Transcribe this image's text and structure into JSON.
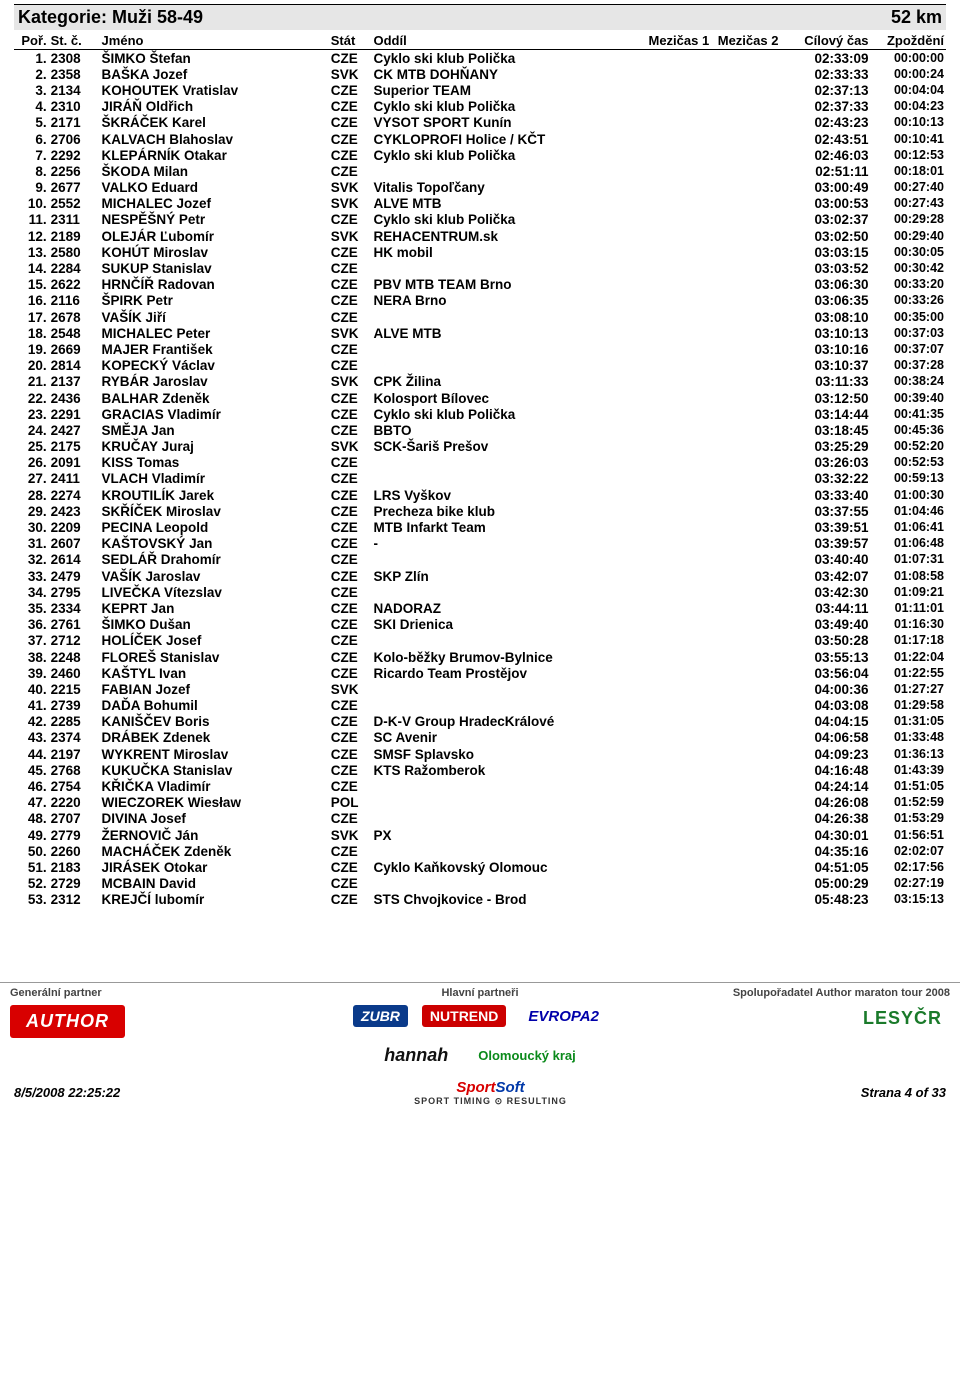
{
  "category": {
    "label": "Kategorie: Muži 58-49",
    "distance": "52 km"
  },
  "columns": {
    "rank": "Poř.",
    "bib": "St. č.",
    "name": "Jméno",
    "nat": "Stát",
    "club": "Oddíl",
    "split1": "Mezičas 1",
    "split2": "Mezičas 2",
    "finish": "Cílový čas",
    "gap": "Zpoždění"
  },
  "rows": [
    {
      "rank": "1.",
      "bib": "2308",
      "name": "ŠIMKO Štefan",
      "nat": "CZE",
      "club": "Cyklo ski klub Polička",
      "finish": "02:33:09",
      "gap": "00:00:00"
    },
    {
      "rank": "2.",
      "bib": "2358",
      "name": "BAŠKA Jozef",
      "nat": "SVK",
      "club": "CK MTB DOHŇANY",
      "finish": "02:33:33",
      "gap": "00:00:24"
    },
    {
      "rank": "3.",
      "bib": "2134",
      "name": "KOHOUTEK Vratislav",
      "nat": "CZE",
      "club": "Superior TEAM",
      "finish": "02:37:13",
      "gap": "00:04:04"
    },
    {
      "rank": "4.",
      "bib": "2310",
      "name": "JIRÁŇ Oldřich",
      "nat": "CZE",
      "club": "Cyklo ski klub Polička",
      "finish": "02:37:33",
      "gap": "00:04:23"
    },
    {
      "rank": "5.",
      "bib": "2171",
      "name": "ŠKRÁČEK Karel",
      "nat": "CZE",
      "club": "VYSOT SPORT Kunín",
      "finish": "02:43:23",
      "gap": "00:10:13"
    },
    {
      "rank": "6.",
      "bib": "2706",
      "name": "KALVACH Blahoslav",
      "nat": "CZE",
      "club": "CYKLOPROFI Holice / KČT",
      "finish": "02:43:51",
      "gap": "00:10:41"
    },
    {
      "rank": "7.",
      "bib": "2292",
      "name": "KLEPÁRNÍK Otakar",
      "nat": "CZE",
      "club": "Cyklo ski klub Polička",
      "finish": "02:46:03",
      "gap": "00:12:53"
    },
    {
      "rank": "8.",
      "bib": "2256",
      "name": "ŠKODA Milan",
      "nat": "CZE",
      "club": "",
      "finish": "02:51:11",
      "gap": "00:18:01"
    },
    {
      "rank": "9.",
      "bib": "2677",
      "name": "VALKO Eduard",
      "nat": "SVK",
      "club": "Vitalis Topoľčany",
      "finish": "03:00:49",
      "gap": "00:27:40"
    },
    {
      "rank": "10.",
      "bib": "2552",
      "name": "MICHALEC Jozef",
      "nat": "SVK",
      "club": "ALVE MTB",
      "finish": "03:00:53",
      "gap": "00:27:43"
    },
    {
      "rank": "11.",
      "bib": "2311",
      "name": "NESPĚŠNÝ Petr",
      "nat": "CZE",
      "club": "Cyklo ski klub Polička",
      "finish": "03:02:37",
      "gap": "00:29:28"
    },
    {
      "rank": "12.",
      "bib": "2189",
      "name": "OLEJÁR Ľubomír",
      "nat": "SVK",
      "club": "REHACENTRUM.sk",
      "finish": "03:02:50",
      "gap": "00:29:40"
    },
    {
      "rank": "13.",
      "bib": "2580",
      "name": "KOHÚT Miroslav",
      "nat": "CZE",
      "club": "HK mobil",
      "finish": "03:03:15",
      "gap": "00:30:05"
    },
    {
      "rank": "14.",
      "bib": "2284",
      "name": "SUKUP Stanislav",
      "nat": "CZE",
      "club": "",
      "finish": "03:03:52",
      "gap": "00:30:42"
    },
    {
      "rank": "15.",
      "bib": "2622",
      "name": "HRNČÍŘ Radovan",
      "nat": "CZE",
      "club": "PBV MTB TEAM Brno",
      "finish": "03:06:30",
      "gap": "00:33:20"
    },
    {
      "rank": "16.",
      "bib": "2116",
      "name": "ŠPIRK Petr",
      "nat": "CZE",
      "club": "NERA Brno",
      "finish": "03:06:35",
      "gap": "00:33:26"
    },
    {
      "rank": "17.",
      "bib": "2678",
      "name": "VAŠÍK Jiří",
      "nat": "CZE",
      "club": "",
      "finish": "03:08:10",
      "gap": "00:35:00"
    },
    {
      "rank": "18.",
      "bib": "2548",
      "name": "MICHALEC Peter",
      "nat": "SVK",
      "club": "ALVE MTB",
      "finish": "03:10:13",
      "gap": "00:37:03"
    },
    {
      "rank": "19.",
      "bib": "2669",
      "name": "MAJER František",
      "nat": "CZE",
      "club": "",
      "finish": "03:10:16",
      "gap": "00:37:07"
    },
    {
      "rank": "20.",
      "bib": "2814",
      "name": "KOPECKÝ Václav",
      "nat": "CZE",
      "club": "",
      "finish": "03:10:37",
      "gap": "00:37:28"
    },
    {
      "rank": "21.",
      "bib": "2137",
      "name": "RYBÁR Jaroslav",
      "nat": "SVK",
      "club": "CPK Žilina",
      "finish": "03:11:33",
      "gap": "00:38:24"
    },
    {
      "rank": "22.",
      "bib": "2436",
      "name": "BALHAR Zdeněk",
      "nat": "CZE",
      "club": "Kolosport Bílovec",
      "finish": "03:12:50",
      "gap": "00:39:40"
    },
    {
      "rank": "23.",
      "bib": "2291",
      "name": "GRACIAS Vladimír",
      "nat": "CZE",
      "club": "Cyklo ski klub Polička",
      "finish": "03:14:44",
      "gap": "00:41:35"
    },
    {
      "rank": "24.",
      "bib": "2427",
      "name": "SMĚJA Jan",
      "nat": "CZE",
      "club": "BBTO",
      "finish": "03:18:45",
      "gap": "00:45:36"
    },
    {
      "rank": "25.",
      "bib": "2175",
      "name": "KRUČAY Juraj",
      "nat": "SVK",
      "club": "SCK-Šariš Prešov",
      "finish": "03:25:29",
      "gap": "00:52:20"
    },
    {
      "rank": "26.",
      "bib": "2091",
      "name": "KISS Tomas",
      "nat": "CZE",
      "club": "",
      "finish": "03:26:03",
      "gap": "00:52:53"
    },
    {
      "rank": "27.",
      "bib": "2411",
      "name": "VLACH Vladimír",
      "nat": "CZE",
      "club": "",
      "finish": "03:32:22",
      "gap": "00:59:13"
    },
    {
      "rank": "28.",
      "bib": "2274",
      "name": "KROUTILÍK Jarek",
      "nat": "CZE",
      "club": "LRS Vyškov",
      "finish": "03:33:40",
      "gap": "01:00:30"
    },
    {
      "rank": "29.",
      "bib": "2423",
      "name": "SKŘÍČEK Miroslav",
      "nat": "CZE",
      "club": "Precheza bike klub",
      "finish": "03:37:55",
      "gap": "01:04:46"
    },
    {
      "rank": "30.",
      "bib": "2209",
      "name": "PECINA Leopold",
      "nat": "CZE",
      "club": "MTB Infarkt Team",
      "finish": "03:39:51",
      "gap": "01:06:41"
    },
    {
      "rank": "31.",
      "bib": "2607",
      "name": "KAŠTOVSKÝ Jan",
      "nat": "CZE",
      "club": "-",
      "finish": "03:39:57",
      "gap": "01:06:48"
    },
    {
      "rank": "32.",
      "bib": "2614",
      "name": "SEDLÁŘ Drahomír",
      "nat": "CZE",
      "club": "",
      "finish": "03:40:40",
      "gap": "01:07:31"
    },
    {
      "rank": "33.",
      "bib": "2479",
      "name": "VAŠÍK Jaroslav",
      "nat": "CZE",
      "club": "SKP Zlín",
      "finish": "03:42:07",
      "gap": "01:08:58"
    },
    {
      "rank": "34.",
      "bib": "2795",
      "name": "LIVEČKA Vítezslav",
      "nat": "CZE",
      "club": "",
      "finish": "03:42:30",
      "gap": "01:09:21"
    },
    {
      "rank": "35.",
      "bib": "2334",
      "name": "KEPRT Jan",
      "nat": "CZE",
      "club": "NADORAZ",
      "finish": "03:44:11",
      "gap": "01:11:01"
    },
    {
      "rank": "36.",
      "bib": "2761",
      "name": "ŠIMKO Dušan",
      "nat": "CZE",
      "club": "SKI Drienica",
      "finish": "03:49:40",
      "gap": "01:16:30"
    },
    {
      "rank": "37.",
      "bib": "2712",
      "name": "HOLÍČEK Josef",
      "nat": "CZE",
      "club": "",
      "finish": "03:50:28",
      "gap": "01:17:18"
    },
    {
      "rank": "38.",
      "bib": "2248",
      "name": "FLOREŠ Stanislav",
      "nat": "CZE",
      "club": "Kolo-běžky Brumov-Bylnice",
      "finish": "03:55:13",
      "gap": "01:22:04"
    },
    {
      "rank": "39.",
      "bib": "2460",
      "name": "KAŠTYL Ivan",
      "nat": "CZE",
      "club": "Ricardo Team Prostějov",
      "finish": "03:56:04",
      "gap": "01:22:55"
    },
    {
      "rank": "40.",
      "bib": "2215",
      "name": "FABIAN Jozef",
      "nat": "SVK",
      "club": "",
      "finish": "04:00:36",
      "gap": "01:27:27"
    },
    {
      "rank": "41.",
      "bib": "2739",
      "name": "DAĎA Bohumil",
      "nat": "CZE",
      "club": "",
      "finish": "04:03:08",
      "gap": "01:29:58"
    },
    {
      "rank": "42.",
      "bib": "2285",
      "name": "KANIŠČEV Boris",
      "nat": "CZE",
      "club": "D-K-V Group HradecKrálové",
      "finish": "04:04:15",
      "gap": "01:31:05"
    },
    {
      "rank": "43.",
      "bib": "2374",
      "name": "DRÁBEK Zdenek",
      "nat": "CZE",
      "club": "SC Avenir",
      "finish": "04:06:58",
      "gap": "01:33:48"
    },
    {
      "rank": "44.",
      "bib": "2197",
      "name": "WYKRENT Miroslav",
      "nat": "CZE",
      "club": "SMSF Splavsko",
      "finish": "04:09:23",
      "gap": "01:36:13"
    },
    {
      "rank": "45.",
      "bib": "2768",
      "name": "KUKUČKA Stanislav",
      "nat": "CZE",
      "club": "KTS Ražomberok",
      "finish": "04:16:48",
      "gap": "01:43:39"
    },
    {
      "rank": "46.",
      "bib": "2754",
      "name": "KŘIČKA Vladimír",
      "nat": "CZE",
      "club": "",
      "finish": "04:24:14",
      "gap": "01:51:05"
    },
    {
      "rank": "47.",
      "bib": "2220",
      "name": "WIECZOREK Wiesław",
      "nat": "POL",
      "club": "",
      "finish": "04:26:08",
      "gap": "01:52:59"
    },
    {
      "rank": "48.",
      "bib": "2707",
      "name": "DIVINA Josef",
      "nat": "CZE",
      "club": "",
      "finish": "04:26:38",
      "gap": "01:53:29"
    },
    {
      "rank": "49.",
      "bib": "2779",
      "name": "ŽERNOVIČ Ján",
      "nat": "SVK",
      "club": "PX",
      "finish": "04:30:01",
      "gap": "01:56:51"
    },
    {
      "rank": "50.",
      "bib": "2260",
      "name": "MACHÁČEK Zdeněk",
      "nat": "CZE",
      "club": "",
      "finish": "04:35:16",
      "gap": "02:02:07"
    },
    {
      "rank": "51.",
      "bib": "2183",
      "name": "JIRÁSEK Otokar",
      "nat": "CZE",
      "club": "Cyklo Kaňkovský Olomouc",
      "finish": "04:51:05",
      "gap": "02:17:56"
    },
    {
      "rank": "52.",
      "bib": "2729",
      "name": "MCBAIN David",
      "nat": "CZE",
      "club": "",
      "finish": "05:00:29",
      "gap": "02:27:19"
    },
    {
      "rank": "53.",
      "bib": "2312",
      "name": "KREJČÍ lubomír",
      "nat": "CZE",
      "club": "STS Chvojkovice - Brod",
      "finish": "05:48:23",
      "gap": "03:15:13"
    }
  ],
  "sponsors": {
    "general_label": "Generální partner",
    "main_label": "Hlavní partneři",
    "co_label": "Spolupořadatel Author maraton tour 2008",
    "author": "AUTHOR",
    "zubr": "ZUBR",
    "nutrend": "NUTREND",
    "hannah": "hannah",
    "evropa2": "EVROPA2",
    "olomouc": "Olomoucký kraj",
    "lesy": "LESYČR"
  },
  "footer": {
    "timestamp": "8/5/2008 22:25:22",
    "brand1": "Sport",
    "brand2": "Soft",
    "tag": "SPORT TIMING ⊙ RESULTING",
    "page": "Strana 4 of 33"
  }
}
